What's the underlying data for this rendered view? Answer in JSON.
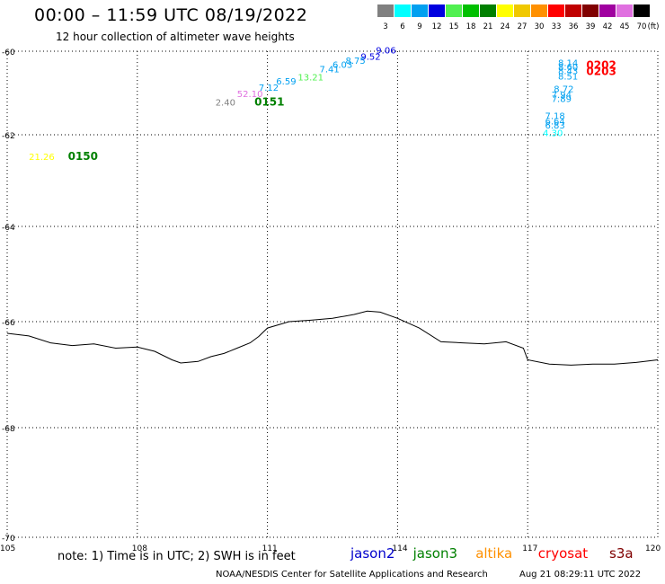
{
  "header": {
    "title": "00:00 – 11:59 UTC 08/19/2022",
    "subtitle": "12 hour collection of altimeter wave heights"
  },
  "legend": {
    "unit": "(ft)",
    "entries": [
      {
        "label": "3",
        "color": "#808080"
      },
      {
        "label": "6",
        "color": "#00ffff"
      },
      {
        "label": "9",
        "color": "#00a0f0"
      },
      {
        "label": "12",
        "color": "#0000e0"
      },
      {
        "label": "15",
        "color": "#50f050"
      },
      {
        "label": "18",
        "color": "#00c000"
      },
      {
        "label": "21",
        "color": "#008000"
      },
      {
        "label": "24",
        "color": "#ffff00"
      },
      {
        "label": "27",
        "color": "#f0c800"
      },
      {
        "label": "30",
        "color": "#ff9000"
      },
      {
        "label": "33",
        "color": "#ff0000"
      },
      {
        "label": "36",
        "color": "#c00000"
      },
      {
        "label": "39",
        "color": "#800000"
      },
      {
        "label": "42",
        "color": "#a000a0"
      },
      {
        "label": "45",
        "color": "#e070e0"
      },
      {
        "label": "70",
        "color": "#000000"
      }
    ]
  },
  "map": {
    "lat_ticks": [
      "-60",
      "-62",
      "-64",
      "-66",
      "-68",
      "-70"
    ],
    "lon_ticks": [
      "105",
      "108",
      "111",
      "114",
      "117",
      "120"
    ],
    "readings": [
      {
        "text": "21.26",
        "color": "#ffff00",
        "lon": 105.5,
        "lat": -62.55
      },
      {
        "text": "0150",
        "color": "#008000",
        "lon": 106.4,
        "lat": -62.55,
        "bold": true
      },
      {
        "text": "2.40",
        "color": "#808080",
        "lon": 109.8,
        "lat": -61.3
      },
      {
        "text": "0151",
        "color": "#008000",
        "lon": 110.7,
        "lat": -61.3,
        "bold": true
      },
      {
        "text": "52.10",
        "color": "#e070e0",
        "lon": 110.3,
        "lat": -61.1
      },
      {
        "text": "7.12",
        "color": "#00a0f0",
        "lon": 110.8,
        "lat": -60.95
      },
      {
        "text": "6.59",
        "color": "#00a0f0",
        "lon": 111.2,
        "lat": -60.8
      },
      {
        "text": "13.21",
        "color": "#50f050",
        "lon": 111.7,
        "lat": -60.7
      },
      {
        "text": "7.41",
        "color": "#00a0f0",
        "lon": 112.2,
        "lat": -60.5
      },
      {
        "text": "6.03",
        "color": "#00a0f0",
        "lon": 112.5,
        "lat": -60.4
      },
      {
        "text": "8.75",
        "color": "#00a0f0",
        "lon": 112.8,
        "lat": -60.3
      },
      {
        "text": "9.52",
        "color": "#0000e0",
        "lon": 113.15,
        "lat": -60.2
      },
      {
        "text": "9.06",
        "color": "#0000e0",
        "lon": 113.5,
        "lat": -60.05
      },
      {
        "text": "8.14",
        "color": "#00a0f0",
        "lon": 117.7,
        "lat": -60.35
      },
      {
        "text": "8.60",
        "color": "#00a0f0",
        "lon": 117.7,
        "lat": -60.45
      },
      {
        "text": "8.43",
        "color": "#00a0f0",
        "lon": 117.7,
        "lat": -60.55
      },
      {
        "text": "8.51",
        "color": "#00a0f0",
        "lon": 117.7,
        "lat": -60.68
      },
      {
        "text": "0202",
        "color": "#ff0000",
        "lon": 118.35,
        "lat": -60.42,
        "bold": true
      },
      {
        "text": "0203",
        "color": "#ff0000",
        "lon": 118.35,
        "lat": -60.57,
        "bold": true
      },
      {
        "text": "8.72",
        "color": "#00a0f0",
        "lon": 117.6,
        "lat": -60.98
      },
      {
        "text": "7.94",
        "color": "#00a0f0",
        "lon": 117.55,
        "lat": -61.12
      },
      {
        "text": "7.89",
        "color": "#00a0f0",
        "lon": 117.55,
        "lat": -61.22
      },
      {
        "text": "7.18",
        "color": "#00a0f0",
        "lon": 117.4,
        "lat": -61.62
      },
      {
        "text": "6.64",
        "color": "#00a0f0",
        "lon": 117.4,
        "lat": -61.75
      },
      {
        "text": "6.83",
        "color": "#00a0f0",
        "lon": 117.4,
        "lat": -61.85
      },
      {
        "text": "4.30",
        "color": "#00ffff",
        "lon": 117.35,
        "lat": -62.03
      }
    ],
    "coastline": [
      [
        105,
        -66.22
      ],
      [
        105.5,
        -66.27
      ],
      [
        106,
        -66.4
      ],
      [
        106.5,
        -66.45
      ],
      [
        107,
        -66.42
      ],
      [
        107.5,
        -66.5
      ],
      [
        108,
        -66.48
      ],
      [
        108.4,
        -66.56
      ],
      [
        108.8,
        -66.72
      ],
      [
        109,
        -66.78
      ],
      [
        109.4,
        -66.75
      ],
      [
        109.7,
        -66.66
      ],
      [
        110,
        -66.6
      ],
      [
        110.3,
        -66.5
      ],
      [
        110.6,
        -66.4
      ],
      [
        110.8,
        -66.28
      ],
      [
        111,
        -66.12
      ],
      [
        111.5,
        -66
      ],
      [
        112,
        -65.97
      ],
      [
        112.5,
        -65.93
      ],
      [
        113,
        -65.85
      ],
      [
        113.3,
        -65.78
      ],
      [
        113.6,
        -65.8
      ],
      [
        114,
        -65.93
      ],
      [
        114.5,
        -66.12
      ],
      [
        115,
        -66.38
      ],
      [
        115.5,
        -66.4
      ],
      [
        116,
        -66.42
      ],
      [
        116.5,
        -66.38
      ],
      [
        116.9,
        -66.5
      ],
      [
        117,
        -66.72
      ],
      [
        117.5,
        -66.8
      ],
      [
        118,
        -66.82
      ],
      [
        118.5,
        -66.8
      ],
      [
        119,
        -66.8
      ],
      [
        119.5,
        -66.77
      ],
      [
        120,
        -66.72
      ]
    ]
  },
  "footer": {
    "note": "note: 1) Time is in UTC; 2) SWH is in feet",
    "satellites": [
      {
        "name": "jason2",
        "color": "#0000cc"
      },
      {
        "name": "jason3",
        "color": "#008000"
      },
      {
        "name": "altika",
        "color": "#ff9000"
      },
      {
        "name": "cryosat",
        "color": "#ff0000"
      },
      {
        "name": "s3a",
        "color": "#800000"
      }
    ],
    "credit": "NOAA/NESDIS Center for Satellite Applications and Research",
    "timestamp": "Aug 21 08:29:11 UTC 2022"
  }
}
